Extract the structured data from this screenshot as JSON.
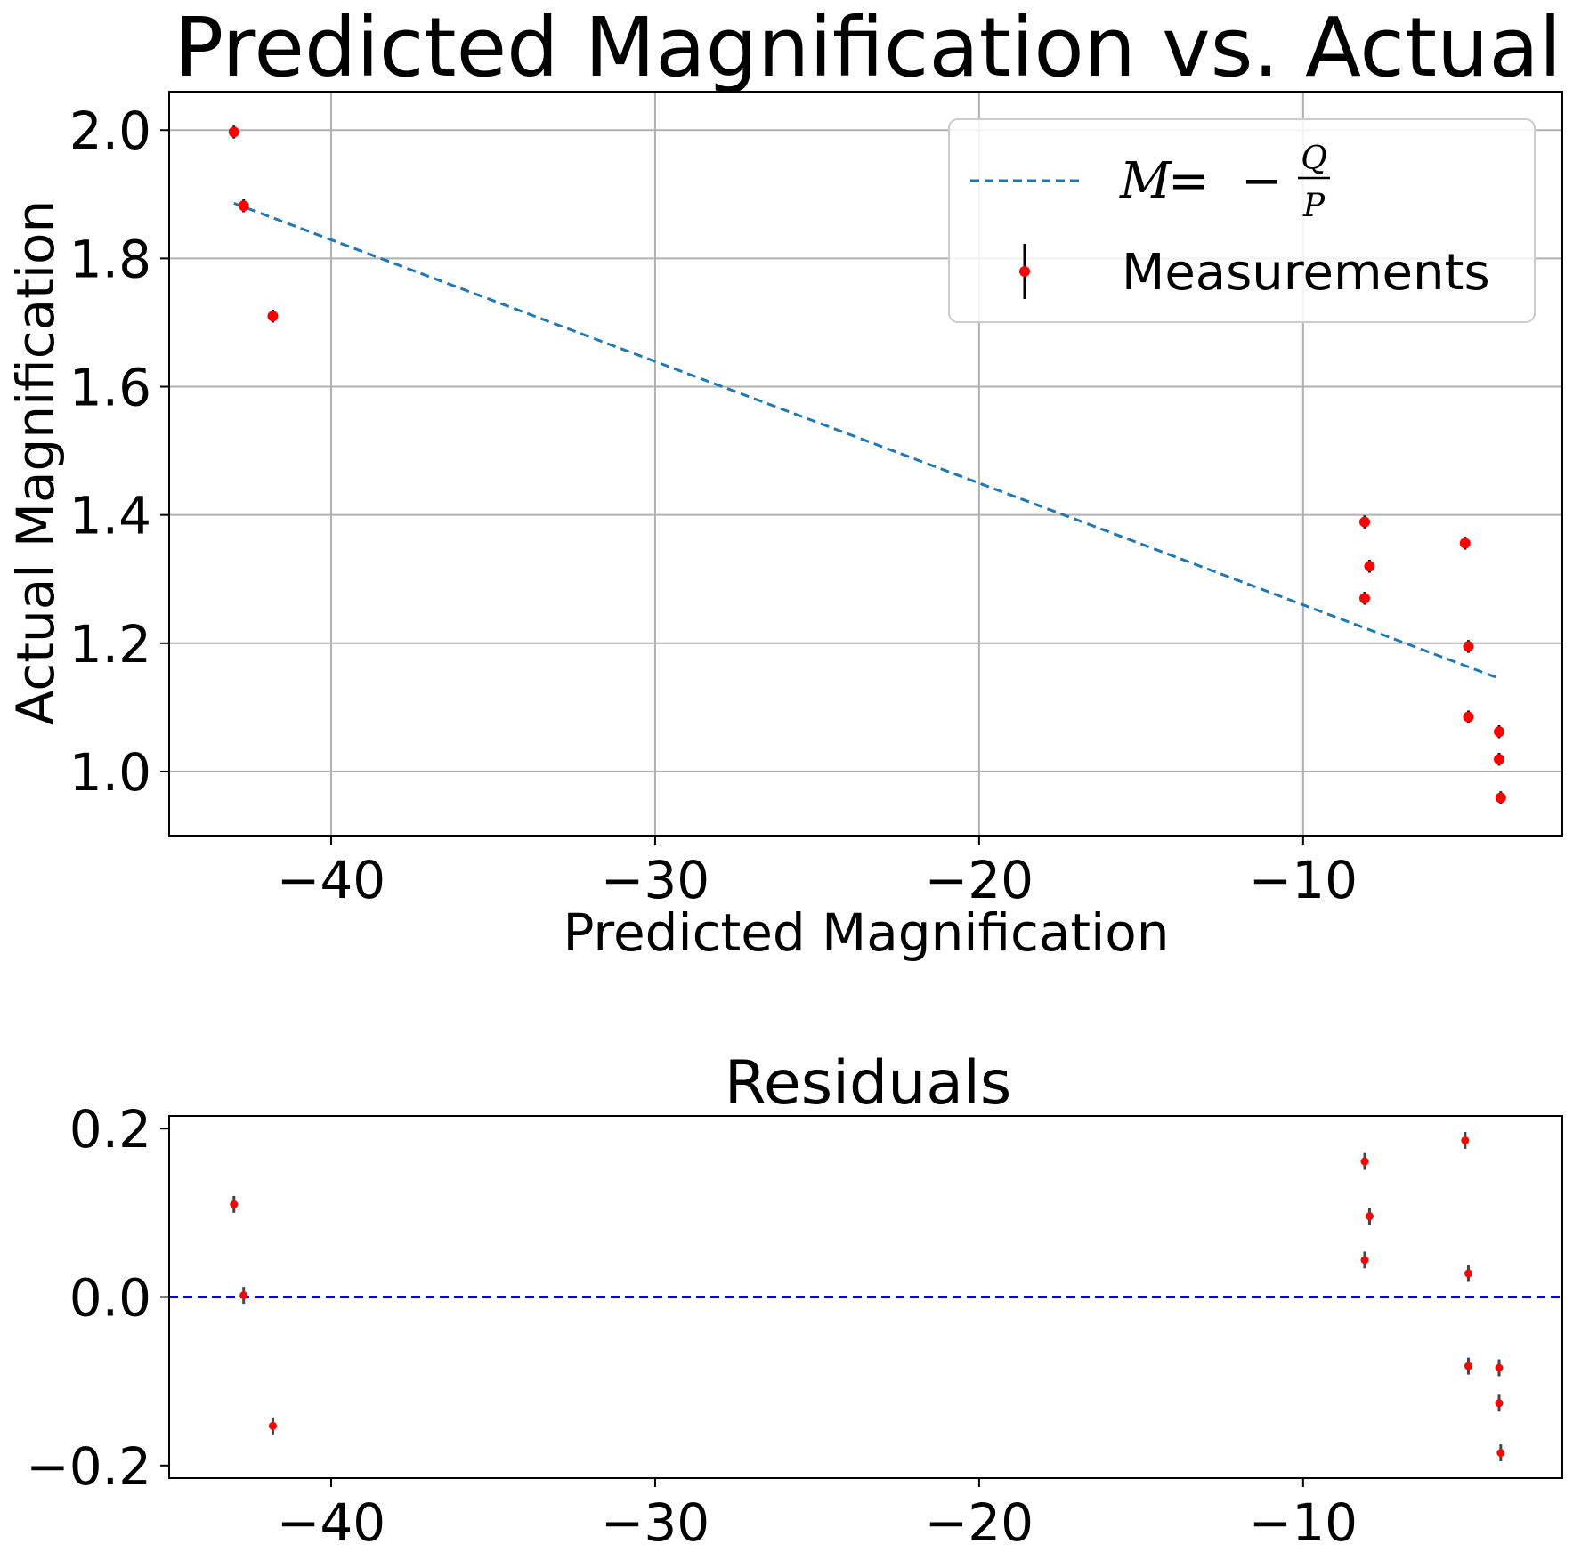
{
  "chart_data": [
    {
      "type": "scatter",
      "title": "Predicted Magnification vs. Actual",
      "xlabel": "Predicted Magnification",
      "ylabel": "Actual Magnification",
      "xlim": [
        -45,
        -2
      ],
      "ylim": [
        0.9,
        2.06
      ],
      "grid": true,
      "xticks": [
        -40,
        -30,
        -20,
        -10
      ],
      "xtick_labels": [
        "−40",
        "−30",
        "−20",
        "−10"
      ],
      "yticks": [
        1.0,
        1.2,
        1.4,
        1.6,
        1.8,
        2.0
      ],
      "ytick_labels": [
        "1.0",
        "1.2",
        "1.4",
        "1.6",
        "1.8",
        "2.0"
      ],
      "legend": {
        "position": "top-right",
        "entries": [
          {
            "label": "M = − Q/P",
            "label_lhs": "M",
            "label_eq": "=",
            "label_minus": "−",
            "label_num": "Q",
            "label_den": "P",
            "style": "dashed-line",
            "color": "#1f77b4"
          },
          {
            "label": "Measurements",
            "style": "errorbar-point",
            "color": "#ff0000"
          }
        ]
      },
      "series": [
        {
          "name": "M = − Q/P",
          "style": "dashed-line",
          "color": "#1f77b4",
          "x": [
            -43.0,
            -4.0
          ],
          "y": [
            1.886,
            1.146
          ]
        },
        {
          "name": "Measurements",
          "style": "errorbar",
          "color": "#ff0000",
          "errcolor": "#000000",
          "x": [
            -43.0,
            -42.7,
            -41.8,
            -8.1,
            -7.95,
            -8.1,
            -5.0,
            -4.9,
            -4.9,
            -3.95,
            -3.95,
            -3.9
          ],
          "y": [
            1.997,
            1.882,
            1.71,
            1.389,
            1.32,
            1.27,
            1.356,
            1.195,
            1.085,
            1.062,
            1.019,
            0.959
          ],
          "yerr": [
            0.01,
            0.01,
            0.01,
            0.01,
            0.01,
            0.01,
            0.01,
            0.01,
            0.01,
            0.01,
            0.01,
            0.01
          ]
        }
      ]
    },
    {
      "type": "scatter",
      "title": "Residuals",
      "xlabel": "",
      "ylabel": "",
      "xlim": [
        -45,
        -2
      ],
      "ylim": [
        -0.215,
        0.215
      ],
      "grid": false,
      "xticks": [
        -40,
        -30,
        -20,
        -10
      ],
      "xtick_labels": [
        "−40",
        "−30",
        "−20",
        "−10"
      ],
      "yticks": [
        -0.2,
        0.0,
        0.2
      ],
      "ytick_labels": [
        "−0.2",
        "0.0",
        "0.2"
      ],
      "reference_line": {
        "y": 0.0,
        "style": "dashed",
        "color": "#0000ff"
      },
      "series": [
        {
          "style": "errorbar",
          "color": "#ff0000",
          "errcolor": "#444444",
          "x": [
            -43.0,
            -42.7,
            -41.8,
            -8.1,
            -7.95,
            -8.1,
            -5.0,
            -4.9,
            -4.9,
            -3.95,
            -3.95,
            -3.9
          ],
          "y": [
            0.11,
            0.002,
            -0.153,
            0.161,
            0.096,
            0.044,
            0.186,
            0.028,
            -0.082,
            -0.084,
            -0.126,
            -0.185
          ],
          "yerr": [
            0.01,
            0.01,
            0.01,
            0.01,
            0.01,
            0.01,
            0.01,
            0.01,
            0.01,
            0.01,
            0.01,
            0.01
          ]
        }
      ]
    }
  ]
}
